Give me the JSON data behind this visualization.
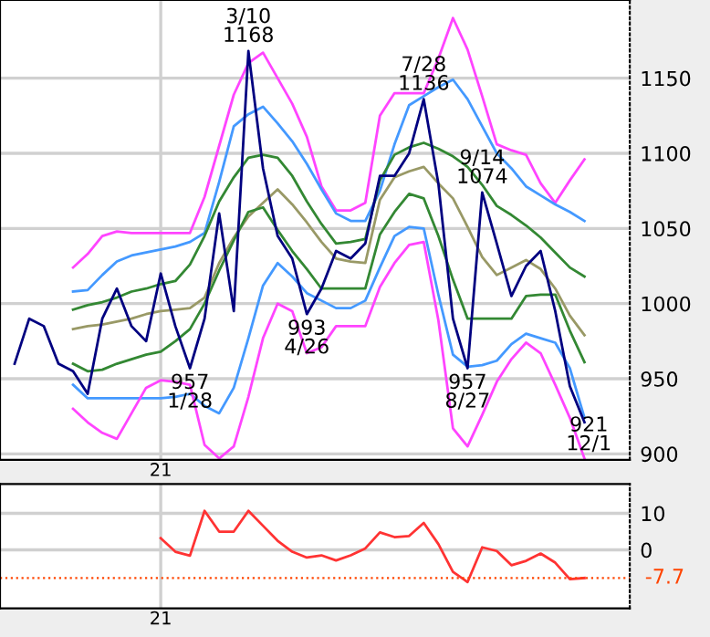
{
  "chart_data": [
    {
      "type": "line",
      "categories": [
        null,
        null,
        null,
        null,
        null,
        null,
        null,
        null,
        null,
        null,
        "21",
        null,
        null,
        null,
        null,
        null,
        null,
        null,
        null,
        null,
        null,
        null,
        null,
        null,
        null,
        null,
        null,
        null,
        null,
        null,
        null,
        null,
        null,
        null,
        null,
        null,
        null,
        null,
        null,
        null
      ],
      "ylim": [
        896,
        1202
      ],
      "yticks": [
        900,
        950,
        1000,
        1050,
        1100,
        1150
      ],
      "grid": true,
      "series": [
        {
          "color": "#ff44ff",
          "values": [
            null,
            null,
            null,
            null,
            1024,
            1033,
            1045,
            1048,
            1047,
            1047,
            1047,
            1047,
            1047,
            1071,
            1105,
            1139,
            1160,
            1167,
            1150,
            1133,
            1111,
            1078,
            1062,
            1062,
            1067,
            1125,
            1140,
            1140,
            1140,
            1163,
            1190,
            1169,
            1138,
            1106,
            1102,
            1099,
            1080,
            1067,
            1082,
            1096
          ]
        },
        {
          "color": "#4499ff",
          "values": [
            null,
            null,
            null,
            null,
            1008,
            1009,
            1019,
            1028,
            1032,
            1034,
            1036,
            1038,
            1041,
            1047,
            1081,
            1118,
            1126,
            1131,
            1120,
            1108,
            1093,
            1076,
            1060,
            1055,
            1055,
            1075,
            1106,
            1132,
            1138,
            1144,
            1149,
            1136,
            1118,
            1100,
            1090,
            1078,
            1072,
            1066,
            1061,
            1055
          ]
        },
        {
          "color": "#338833",
          "values": [
            null,
            null,
            null,
            null,
            996,
            999,
            1001,
            1004,
            1008,
            1010,
            1013,
            1015,
            1026,
            1045,
            1068,
            1084,
            1097,
            1099,
            1097,
            1085,
            1068,
            1053,
            1040,
            1041,
            1043,
            1082,
            1099,
            1104,
            1107,
            1103,
            1098,
            1091,
            1079,
            1065,
            1059,
            1052,
            1044,
            1034,
            1024,
            1018
          ]
        },
        {
          "color": "#999966",
          "values": [
            null,
            null,
            null,
            null,
            983,
            985,
            986,
            988,
            990,
            993,
            995,
            996,
            997,
            1004,
            1027,
            1044,
            1058,
            1067,
            1076,
            1066,
            1054,
            1041,
            1030,
            1028,
            1027,
            1069,
            1084,
            1088,
            1091,
            1080,
            1070,
            1051,
            1031,
            1019,
            1024,
            1029,
            1023,
            1010,
            992,
            979
          ]
        },
        {
          "color": "#338833",
          "values": [
            null,
            null,
            null,
            null,
            960,
            955,
            956,
            960,
            963,
            966,
            968,
            975,
            983,
            1000,
            1022,
            1042,
            1061,
            1064,
            1049,
            1035,
            1023,
            1010,
            1010,
            1010,
            1010,
            1046,
            1061,
            1073,
            1070,
            1045,
            1016,
            990,
            990,
            990,
            990,
            1005,
            1006,
            1006,
            982,
            961
          ]
        },
        {
          "color": "#4499ff",
          "values": [
            null,
            null,
            null,
            null,
            946,
            937,
            937,
            937,
            937,
            937,
            937,
            938,
            940,
            932,
            927,
            944,
            977,
            1012,
            1027,
            1018,
            1007,
            1002,
            997,
            997,
            1002,
            1024,
            1045,
            1051,
            1050,
            1006,
            966,
            958,
            959,
            962,
            973,
            980,
            977,
            974,
            957,
            924
          ]
        },
        {
          "color": "#ff44ff",
          "values": [
            null,
            null,
            null,
            null,
            930,
            921,
            914,
            910,
            927,
            944,
            949,
            948,
            946,
            906,
            897,
            905,
            938,
            977,
            1000,
            995,
            967,
            971,
            985,
            985,
            985,
            1011,
            1027,
            1039,
            1041,
            989,
            917,
            905,
            926,
            948,
            963,
            974,
            967,
            946,
            924,
            897
          ]
        },
        {
          "color": "#000080",
          "values": [
            960,
            990,
            985,
            960,
            955,
            940,
            990,
            1010,
            985,
            975,
            1020,
            985,
            957,
            990,
            1060,
            995,
            1168,
            1090,
            1045,
            1030,
            993,
            1010,
            1035,
            1030,
            1040,
            1085,
            1085,
            1100,
            1136,
            1080,
            990,
            957,
            1074,
            1040,
            1005,
            1025,
            1035,
            995,
            945,
            921
          ]
        }
      ],
      "annotations": [
        {
          "text": "3/10\n1168",
          "y": 1168
        },
        {
          "text": "957\n1/28",
          "y": 957
        },
        {
          "text": "993\n4/26",
          "y": 993
        },
        {
          "text": "7/28\n1136",
          "y": 1136
        },
        {
          "text": "9/14\n1074",
          "y": 1074
        },
        {
          "text": "957\n8/27",
          "y": 957
        },
        "921\n12/1"
      ]
    },
    {
      "type": "line",
      "categories": [
        null,
        null,
        null,
        null,
        null,
        null,
        null,
        null,
        null,
        null,
        "21",
        null,
        null,
        null,
        null,
        null,
        null,
        null,
        null,
        null,
        null,
        null,
        null,
        null,
        null,
        null,
        null,
        null,
        null,
        null,
        null,
        null,
        null,
        null,
        null,
        null,
        null,
        null,
        null,
        null
      ],
      "ylim": [
        -16,
        18
      ],
      "yticks": [
        0,
        10
      ],
      "grid": true,
      "series": [
        {
          "color": "#ff3333",
          "values": [
            null,
            null,
            null,
            null,
            null,
            null,
            null,
            null,
            null,
            null,
            3.2,
            -0.5,
            -1.6,
            10.7,
            5,
            5,
            10.7,
            6.6,
            2.5,
            -0.5,
            -2.1,
            -1.5,
            -2.9,
            -1.5,
            0.4,
            4.8,
            3.5,
            3.8,
            7.4,
            1.6,
            -6,
            -8.8,
            0.7,
            -0.3,
            -4.2,
            -3,
            -1,
            -3.5,
            -8,
            -7.7
          ]
        }
      ],
      "ref_lines": [
        {
          "axis": "y",
          "value": -7.7,
          "label": "-7.7",
          "color": "#ff4400",
          "line_style": "dotted"
        }
      ]
    }
  ]
}
